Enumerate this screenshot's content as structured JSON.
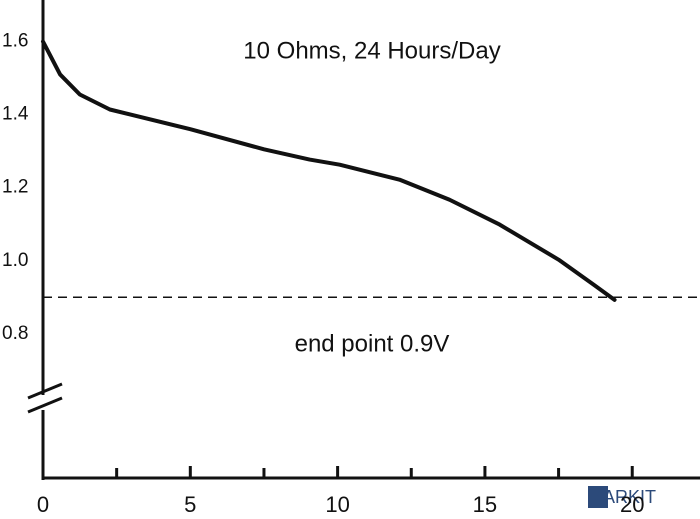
{
  "chart_data": {
    "type": "line",
    "annotations": [
      "10 Ohms, 24 Hours/Day",
      "end point 0.9V"
    ],
    "x": [
      0,
      0.58,
      1.25,
      2.27,
      5,
      7.5,
      9.05,
      10.07,
      12.1,
      13.8,
      15.5,
      17.5,
      18.7,
      19.4
    ],
    "series": [
      {
        "color": "#111111",
        "values": [
          1.6,
          1.51,
          1.455,
          1.414,
          1.36,
          1.305,
          1.277,
          1.263,
          1.222,
          1.167,
          1.099,
          1.003,
          0.934,
          0.893
        ]
      }
    ],
    "reference_line": 0.9,
    "xlim": [
      0,
      22.3
    ],
    "xticks": [
      0,
      5,
      10,
      15,
      20
    ],
    "xminor_ticks": [
      2.5,
      7.5,
      12.5,
      17.5
    ],
    "ylim": [
      0.4,
      1.7
    ],
    "yticks": [
      0.8,
      {
        "value": 1,
        "label": "1.0"
      },
      1.2,
      1.4,
      1.6
    ],
    "watermark": "MARKIT"
  }
}
